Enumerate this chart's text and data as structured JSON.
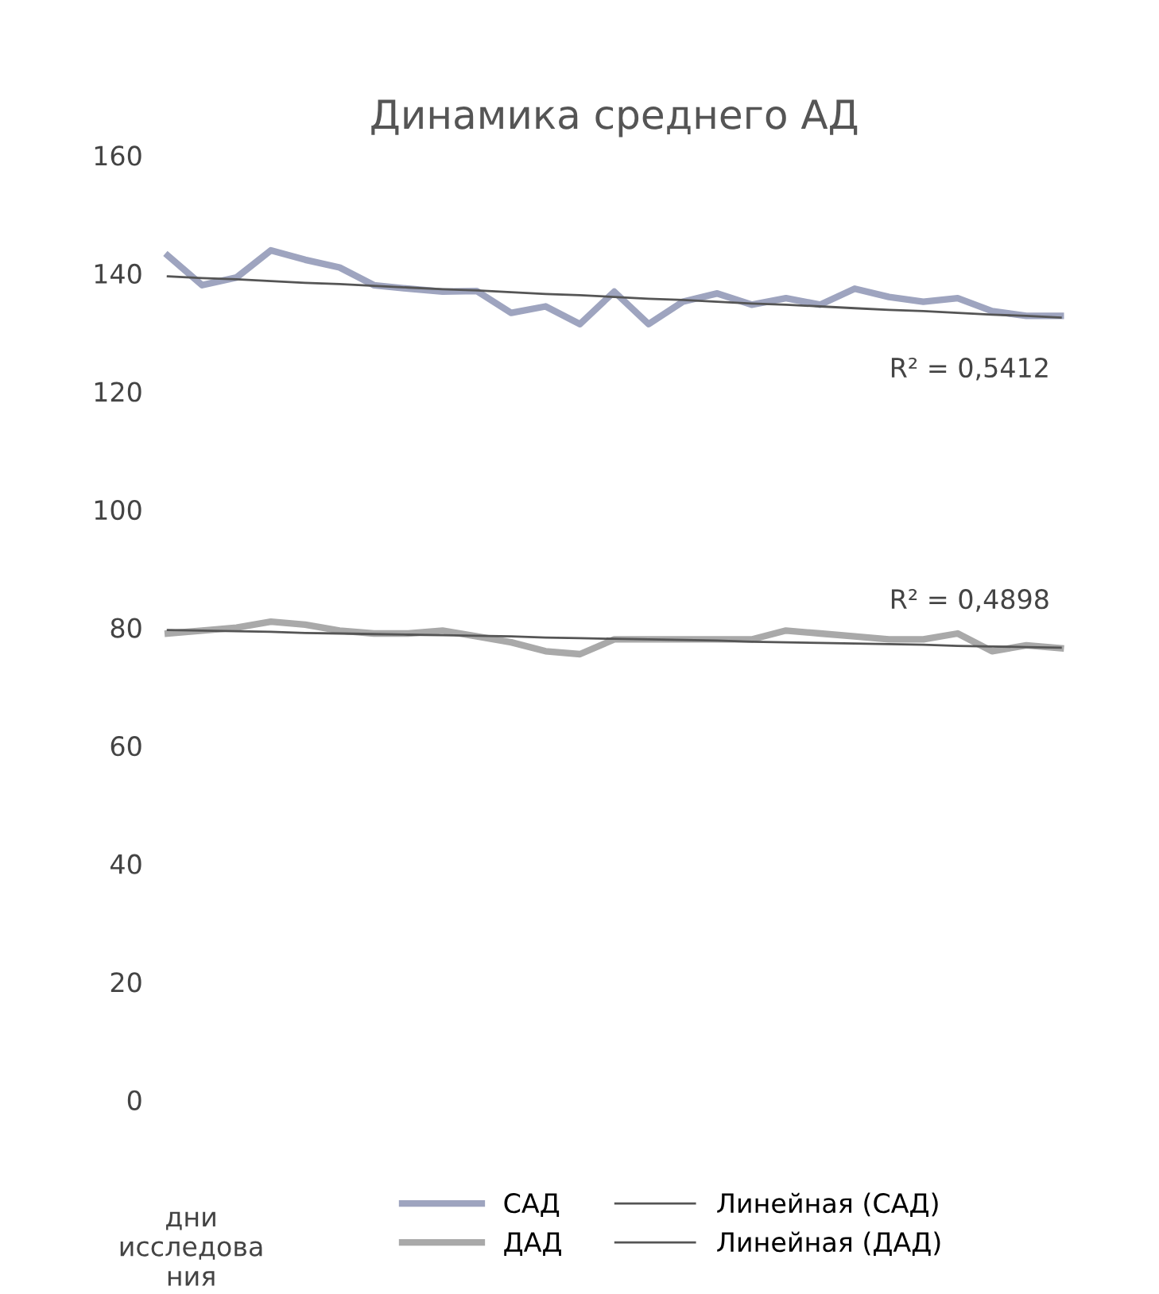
{
  "chart_data": {
    "type": "line",
    "title": "Динамика среднего АД",
    "xlabel": "дни\nисследова\nния",
    "categories": [
      null,
      null,
      null,
      null,
      null,
      null,
      null,
      null,
      null,
      null,
      null,
      null,
      null,
      null,
      null,
      null,
      null,
      null,
      null,
      null,
      null,
      null,
      null,
      null,
      null,
      null,
      null
    ],
    "series": [
      {
        "name": "САД",
        "color": "#9ea4bf",
        "values": [
          143,
          138,
          139.3,
          143.9,
          142.3,
          141,
          138,
          137.4,
          136.9,
          137,
          133.3,
          134.4,
          131.4,
          136.9,
          131.4,
          135.2,
          136.6,
          134.7,
          135.8,
          134.7,
          137.4,
          136,
          135.2,
          135.8,
          133.6,
          132.8,
          132.8
        ]
      },
      {
        "name": "ДАД",
        "color": "#a9a9a9",
        "values": [
          79,
          79.5,
          80,
          81,
          80.5,
          79.5,
          79,
          79,
          79.5,
          78.5,
          77.5,
          76,
          75.5,
          78,
          78,
          78,
          78,
          78,
          79.5,
          79,
          78.5,
          78,
          78,
          79,
          76,
          77,
          76.5
        ]
      },
      {
        "name": "Линейная (САД)",
        "color": "#555555",
        "type": "line",
        "values": [
          139.5,
          139.2,
          139.0,
          138.7,
          138.4,
          138.2,
          137.9,
          137.6,
          137.3,
          137.1,
          136.8,
          136.5,
          136.3,
          136.0,
          135.7,
          135.5,
          135.2,
          134.9,
          134.7,
          134.4,
          134.1,
          133.8,
          133.6,
          133.3,
          133.0,
          132.8,
          132.5
        ]
      },
      {
        "name": "Линейная (ДАД)",
        "color": "#555555",
        "type": "line",
        "values": [
          79.6,
          79.5,
          79.4,
          79.3,
          79.1,
          79.0,
          78.9,
          78.8,
          78.7,
          78.6,
          78.5,
          78.3,
          78.2,
          78.1,
          78.0,
          77.9,
          77.8,
          77.6,
          77.5,
          77.4,
          77.3,
          77.2,
          77.1,
          76.9,
          76.8,
          76.7,
          76.6
        ]
      }
    ],
    "annotations": [
      "R² = 0,5412",
      "R² = 0,4898"
    ],
    "ylim": [
      0,
      160
    ],
    "yticks": [
      0,
      20,
      40,
      60,
      80,
      100,
      120,
      140,
      160
    ],
    "grid": false,
    "legend": "bottom",
    "marker": "none",
    "line_style": "solid"
  }
}
